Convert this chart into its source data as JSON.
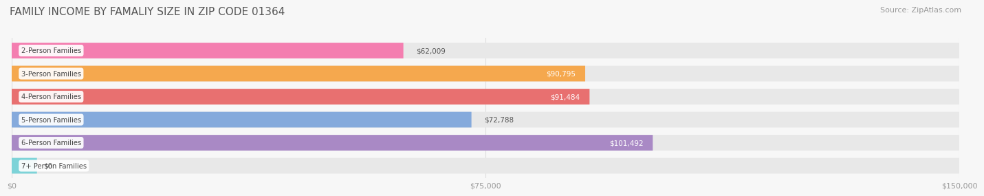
{
  "title": "FAMILY INCOME BY FAMALIY SIZE IN ZIP CODE 01364",
  "source": "Source: ZipAtlas.com",
  "categories": [
    "2-Person Families",
    "3-Person Families",
    "4-Person Families",
    "5-Person Families",
    "6-Person Families",
    "7+ Person Families"
  ],
  "values": [
    62009,
    90795,
    91484,
    72788,
    101492,
    0
  ],
  "bar_colors": [
    "#F47EB0",
    "#F5A84E",
    "#E87070",
    "#85AADC",
    "#A989C5",
    "#7DD3D8"
  ],
  "bar_bg_color": "#E8E8E8",
  "value_labels": [
    "$62,009",
    "$90,795",
    "$91,484",
    "$72,788",
    "$101,492",
    "$0"
  ],
  "label_inside": [
    false,
    true,
    true,
    false,
    true,
    false
  ],
  "xlim": [
    0,
    150000
  ],
  "xticks": [
    0,
    75000,
    150000
  ],
  "xticklabels": [
    "$0",
    "$75,000",
    "$150,000"
  ],
  "title_fontsize": 11,
  "source_fontsize": 8,
  "bar_height": 0.68,
  "background_color": "#F7F7F7",
  "label_color_inside": "#FFFFFF",
  "label_color_outside": "#555555"
}
